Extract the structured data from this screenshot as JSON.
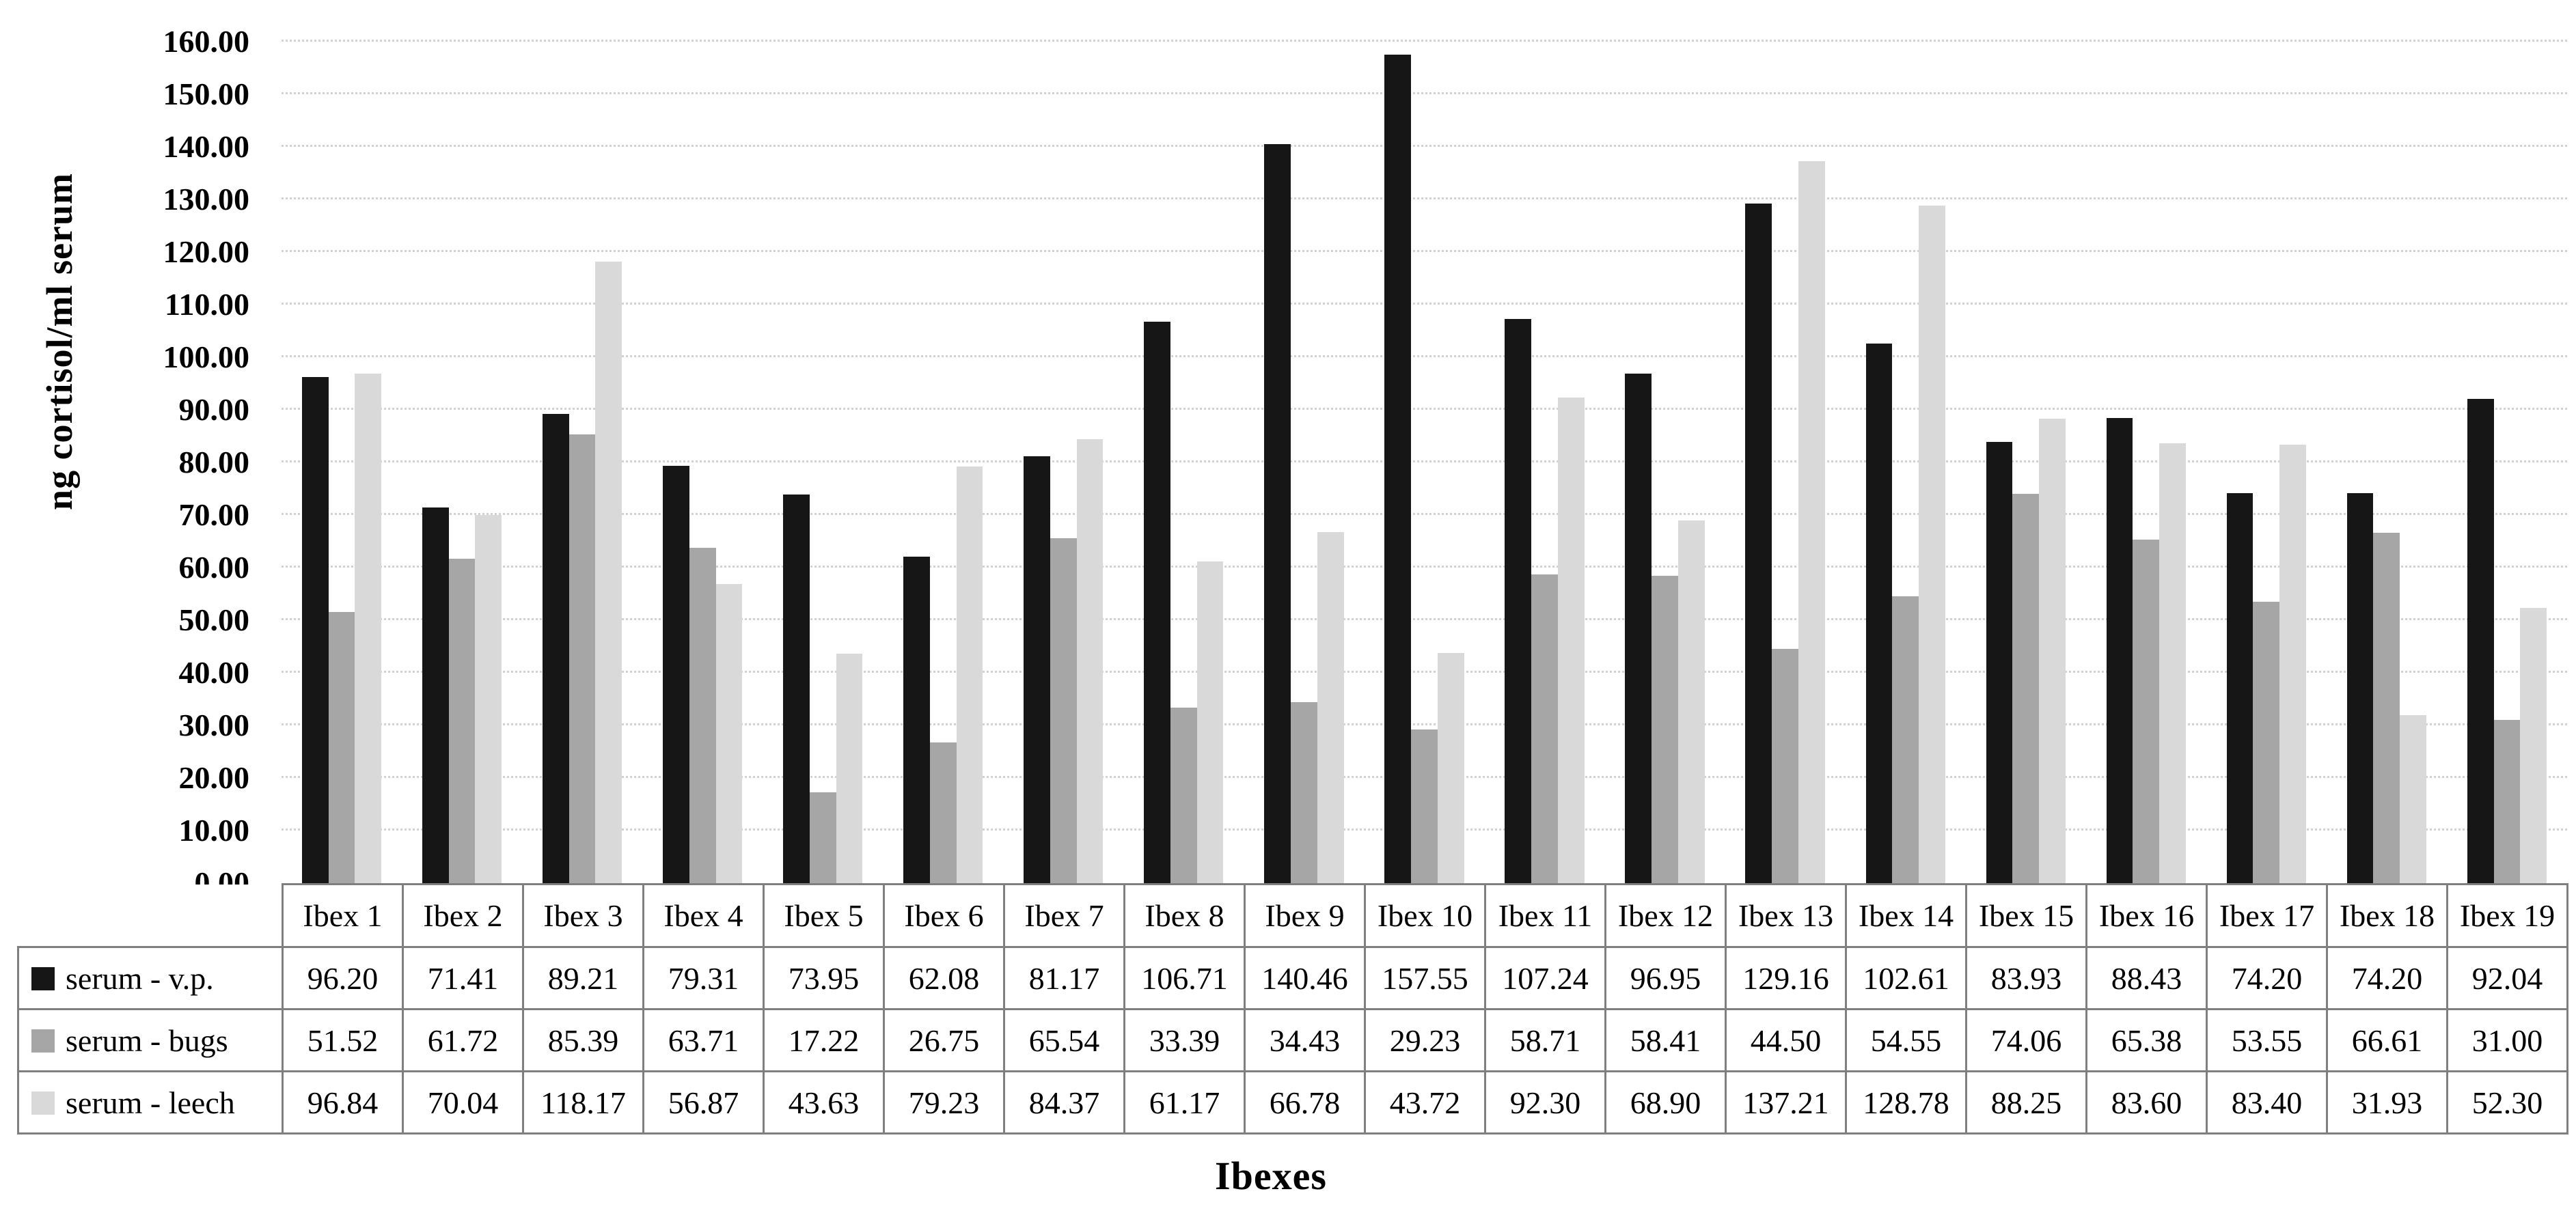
{
  "chart_data": {
    "type": "bar",
    "title": "",
    "xlabel": "Ibexes",
    "ylabel": "ng cortisol/ml serum",
    "ylim": [
      0,
      160
    ],
    "ytick_step": 10,
    "ytick_labels": [
      "0.00",
      "10.00",
      "20.00",
      "30.00",
      "40.00",
      "50.00",
      "60.00",
      "70.00",
      "80.00",
      "90.00",
      "100.00",
      "110.00",
      "120.00",
      "130.00",
      "140.00",
      "150.00",
      "160.00"
    ],
    "grid": "horizontal-dotted",
    "gridline_color": "#d2d2d2",
    "legend_position": "table-row-headers",
    "value_format": "0.00",
    "categories": [
      "Ibex 1",
      "Ibex 2",
      "Ibex 3",
      "Ibex 4",
      "Ibex 5",
      "Ibex 6",
      "Ibex 7",
      "Ibex 8",
      "Ibex 9",
      "Ibex 10",
      "Ibex 11",
      "Ibex 12",
      "Ibex 13",
      "Ibex 14",
      "Ibex 15",
      "Ibex 16",
      "Ibex 17",
      "Ibex 18",
      "Ibex 19"
    ],
    "series": [
      {
        "name": "serum - v.p.",
        "color": "#161616",
        "values": [
          96.2,
          71.41,
          89.21,
          79.31,
          73.95,
          62.08,
          81.17,
          106.71,
          140.46,
          157.55,
          107.24,
          96.95,
          129.16,
          102.61,
          83.93,
          88.43,
          74.2,
          74.2,
          92.04
        ]
      },
      {
        "name": "serum - bugs",
        "color": "#a6a6a6",
        "values": [
          51.52,
          61.72,
          85.39,
          63.71,
          17.22,
          26.75,
          65.54,
          33.39,
          34.43,
          29.23,
          58.71,
          58.41,
          44.5,
          54.55,
          74.06,
          65.38,
          53.55,
          66.61,
          31.0
        ]
      },
      {
        "name": "serum - leech",
        "color": "#d9d9d9",
        "values": [
          96.84,
          70.04,
          118.17,
          56.87,
          43.63,
          79.23,
          84.37,
          61.17,
          66.78,
          43.72,
          92.3,
          68.9,
          137.21,
          128.78,
          88.25,
          83.6,
          83.4,
          31.93,
          52.3
        ]
      }
    ]
  }
}
